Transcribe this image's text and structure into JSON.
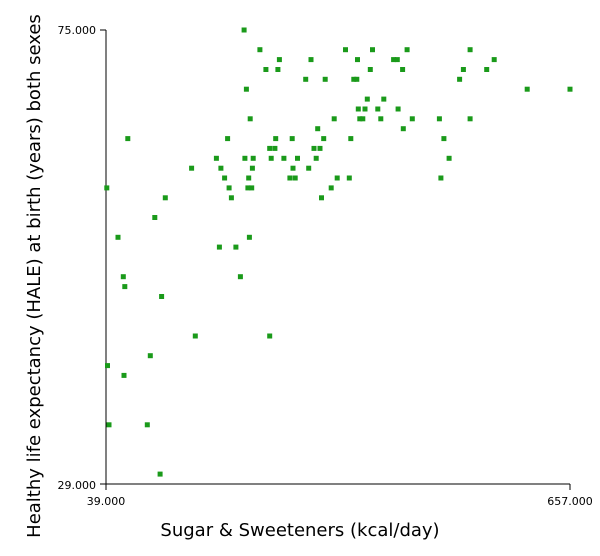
{
  "chart_data": {
    "type": "scatter",
    "xlabel": "Sugar & Sweeteners (kcal/day)",
    "ylabel": "Healthy life expectancy (HALE) at birth (years) both sexes",
    "xlim": [
      39,
      657
    ],
    "ylim": [
      29,
      75
    ],
    "x_tick_labels": [
      "39.000",
      "657.000"
    ],
    "y_tick_labels": [
      "29.000",
      "75.000"
    ],
    "grid": false,
    "marker_color": "#1a9a1a",
    "series": [
      {
        "points": [
          [
            40,
            59
          ],
          [
            41,
            41
          ],
          [
            43,
            35
          ],
          [
            55,
            54
          ],
          [
            62,
            50
          ],
          [
            63,
            40
          ],
          [
            64,
            49
          ],
          [
            68,
            64
          ],
          [
            94,
            35
          ],
          [
            98,
            42
          ],
          [
            104,
            56
          ],
          [
            111,
            30
          ],
          [
            113,
            48
          ],
          [
            118,
            58
          ],
          [
            153,
            61
          ],
          [
            158,
            44
          ],
          [
            186,
            62
          ],
          [
            190,
            53
          ],
          [
            192,
            61
          ],
          [
            197,
            60
          ],
          [
            201,
            64
          ],
          [
            203,
            59
          ],
          [
            206,
            58
          ],
          [
            212,
            53
          ],
          [
            218,
            50
          ],
          [
            223,
            75
          ],
          [
            224,
            62
          ],
          [
            226,
            69
          ],
          [
            228,
            59
          ],
          [
            229,
            60
          ],
          [
            230,
            54
          ],
          [
            231,
            66
          ],
          [
            233,
            59
          ],
          [
            234,
            61
          ],
          [
            235,
            62
          ],
          [
            244,
            73
          ],
          [
            252,
            71
          ],
          [
            257,
            63
          ],
          [
            257,
            44
          ],
          [
            259,
            62
          ],
          [
            264,
            63
          ],
          [
            265,
            64
          ],
          [
            268,
            71
          ],
          [
            270,
            72
          ],
          [
            276,
            62
          ],
          [
            284,
            60
          ],
          [
            287,
            64
          ],
          [
            288,
            61
          ],
          [
            291,
            60
          ],
          [
            294,
            62
          ],
          [
            305,
            70
          ],
          [
            309,
            61
          ],
          [
            312,
            72
          ],
          [
            316,
            63
          ],
          [
            319,
            62
          ],
          [
            321,
            65
          ],
          [
            324,
            63
          ],
          [
            326,
            58
          ],
          [
            329,
            64
          ],
          [
            331,
            70
          ],
          [
            339,
            59
          ],
          [
            343,
            66
          ],
          [
            347,
            60
          ],
          [
            358,
            73
          ],
          [
            363,
            60
          ],
          [
            365,
            64
          ],
          [
            369,
            70
          ],
          [
            373,
            70
          ],
          [
            374,
            72
          ],
          [
            375,
            67
          ],
          [
            377,
            66
          ],
          [
            381,
            66
          ],
          [
            384,
            67
          ],
          [
            387,
            68
          ],
          [
            391,
            71
          ],
          [
            394,
            73
          ],
          [
            401,
            67
          ],
          [
            405,
            66
          ],
          [
            409,
            68
          ],
          [
            422,
            72
          ],
          [
            427,
            72
          ],
          [
            428,
            67
          ],
          [
            434,
            71
          ],
          [
            435,
            65
          ],
          [
            440,
            73
          ],
          [
            447,
            66
          ],
          [
            483,
            66
          ],
          [
            485,
            60
          ],
          [
            489,
            64
          ],
          [
            496,
            62
          ],
          [
            510,
            70
          ],
          [
            515,
            71
          ],
          [
            524,
            66
          ],
          [
            524,
            73
          ],
          [
            546,
            71
          ],
          [
            556,
            72
          ],
          [
            600,
            69
          ],
          [
            657,
            69
          ]
        ]
      }
    ]
  }
}
